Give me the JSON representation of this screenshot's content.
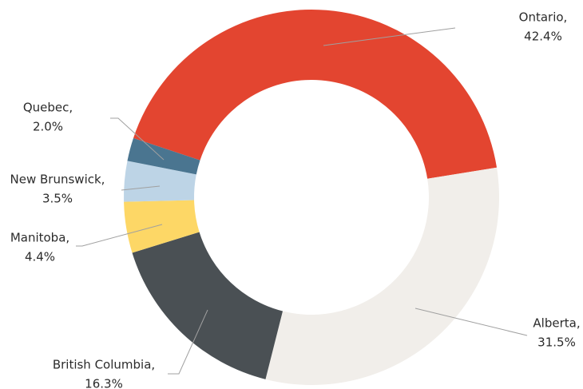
{
  "chart_data": {
    "type": "donut",
    "categories": [
      "Ontario,",
      "Alberta,",
      "British Columbia,",
      "Manitoba,",
      "New Brunswick,",
      "Quebec,"
    ],
    "values": [
      42.4,
      31.5,
      16.3,
      4.4,
      3.5,
      2.0
    ],
    "value_labels": [
      "42.4%",
      "31.5%",
      "16.3%",
      "4.4%",
      "3.5%",
      "2.0%"
    ],
    "colors": [
      "#e34530",
      "#f1eeea",
      "#4a5054",
      "#fdd766",
      "#bdd4e6",
      "#4a7590"
    ]
  }
}
